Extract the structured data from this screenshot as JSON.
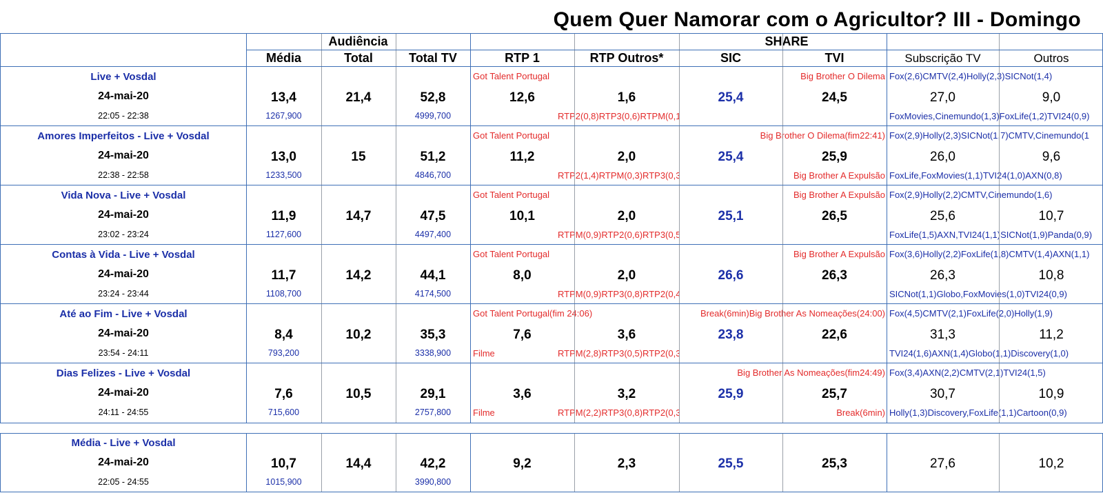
{
  "title": "Quem Quer Namorar com o Agricultor? III - Domingo",
  "headers": {
    "audiencia": "Audiência",
    "share": "SHARE",
    "media": "Média",
    "total": "Total",
    "total_tv": "Total TV",
    "rtp1": "RTP 1",
    "rtp_outros": "RTP Outros*",
    "sic": "SIC",
    "tvi": "TVI",
    "subscricao": "Subscrição TV",
    "outros": "Outros"
  },
  "rows": [
    {
      "name": "Live + Vosdal",
      "date": "24-mai-20",
      "time": "22:05 - 22:38",
      "media": "13,4",
      "total": "21,4",
      "total_tv": "52,8",
      "media_abs": "1267,900",
      "total_tv_abs": "4999,700",
      "rtp1": "12,6",
      "rtp_outros": "1,6",
      "sic": "25,4",
      "tvi": "24,5",
      "subscricao": "27,0",
      "outros": "9,0",
      "rtp1_top": "Got Talent Portugal",
      "rtp1_bottom": "",
      "rtp_outros_top": "",
      "rtp_outros_bottom": "RTP2(0,8)RTP3(0,6)RTPM(0,1)",
      "sic_top": "",
      "tvi_top": "Big Brother O Dilema",
      "tvi_bottom": "",
      "subs_top": "Fox(2,6)CMTV(2,4)Holly(2,3)SICNot(1,4)",
      "subs_bottom": "FoxMovies,Cinemundo(1,3)FoxLife(1,2)TVI24(0,9)"
    },
    {
      "name": "Amores Imperfeitos - Live + Vosdal",
      "date": "24-mai-20",
      "time": "22:38 - 22:58",
      "media": "13,0",
      "total": "15",
      "total_tv": "51,2",
      "media_abs": "1233,500",
      "total_tv_abs": "4846,700",
      "rtp1": "11,2",
      "rtp_outros": "2,0",
      "sic": "25,4",
      "tvi": "25,9",
      "subscricao": "26,0",
      "outros": "9,6",
      "rtp1_top": "Got Talent Portugal",
      "rtp1_bottom": "",
      "rtp_outros_top": "",
      "rtp_outros_bottom": "RTP2(1,4)RTPM(0,3)RTP3(0,3)",
      "sic_top": "Big Brother O Dilema(fim22:41)",
      "tvi_top": "",
      "tvi_bottom": "Big Brother A Expulsão",
      "subs_top": "Fox(2,9)Holly(2,3)SICNot(1,7)CMTV,Cinemundo(1",
      "subs_bottom": "FoxLife,FoxMovies(1,1)TVI24(1,0)AXN(0,8)"
    },
    {
      "name": "Vida Nova - Live + Vosdal",
      "date": "24-mai-20",
      "time": "23:02 - 23:24",
      "media": "11,9",
      "total": "14,7",
      "total_tv": "47,5",
      "media_abs": "1127,600",
      "total_tv_abs": "4497,400",
      "rtp1": "10,1",
      "rtp_outros": "2,0",
      "sic": "25,1",
      "tvi": "26,5",
      "subscricao": "25,6",
      "outros": "10,7",
      "rtp1_top": "Got Talent Portugal",
      "rtp1_bottom": "",
      "rtp_outros_top": "",
      "rtp_outros_bottom": "RTPM(0,9)RTP2(0,6)RTP3(0,5)",
      "sic_top": "",
      "tvi_top": "Big Brother A Expulsão",
      "tvi_bottom": "",
      "subs_top": "Fox(2,9)Holly(2,2)CMTV,Cinemundo(1,6)",
      "subs_bottom": "FoxLife(1,5)AXN,TVI24(1,1)SICNot(1,9)Panda(0,9)"
    },
    {
      "name": "Contas à Vida - Live + Vosdal",
      "date": "24-mai-20",
      "time": "23:24 - 23:44",
      "media": "11,7",
      "total": "14,2",
      "total_tv": "44,1",
      "media_abs": "1108,700",
      "total_tv_abs": "4174,500",
      "rtp1": "8,0",
      "rtp_outros": "2,0",
      "sic": "26,6",
      "tvi": "26,3",
      "subscricao": "26,3",
      "outros": "10,8",
      "rtp1_top": "Got Talent Portugal",
      "rtp1_bottom": "",
      "rtp_outros_top": "",
      "rtp_outros_bottom": "RTPM(0,9)RTP3(0,8)RTP2(0,4)",
      "sic_top": "",
      "tvi_top": "Big Brother A Expulsão",
      "tvi_bottom": "",
      "subs_top": "Fox(3,6)Holly(2,2)FoxLife(1,8)CMTV(1,4)AXN(1,1)",
      "subs_bottom": "SICNot(1,1)Globo,FoxMovies(1,0)TVI24(0,9)"
    },
    {
      "name": "Até ao Fim - Live + Vosdal",
      "date": "24-mai-20",
      "time": "23:54 - 24:11",
      "media": "8,4",
      "total": "10,2",
      "total_tv": "35,3",
      "media_abs": "793,200",
      "total_tv_abs": "3338,900",
      "rtp1": "7,6",
      "rtp_outros": "3,6",
      "sic": "23,8",
      "tvi": "22,6",
      "subscricao": "31,3",
      "outros": "11,2",
      "rtp1_top": "Got Talent Portugal(fim 24:06)",
      "rtp1_bottom": "Filme",
      "rtp_outros_top": "",
      "rtp_outros_bottom": "RTPM(2,8)RTP3(0,5)RTP2(0,3)",
      "sic_top": "Break(6min)Big Brother As Nomeações(24:00)",
      "tvi_top": "",
      "tvi_bottom": "",
      "subs_top": "Fox(4,5)CMTV(2,1)FoxLife(2,0)Holly(1,9)",
      "subs_bottom": "TVI24(1,6)AXN(1,4)Globo(1,1)Discovery(1,0)"
    },
    {
      "name": "Dias Felizes - Live + Vosdal",
      "date": "24-mai-20",
      "time": "24:11 - 24:55",
      "media": "7,6",
      "total": "10,5",
      "total_tv": "29,1",
      "media_abs": "715,600",
      "total_tv_abs": "2757,800",
      "rtp1": "3,6",
      "rtp_outros": "3,2",
      "sic": "25,9",
      "tvi": "25,7",
      "subscricao": "30,7",
      "outros": "10,9",
      "rtp1_top": "",
      "rtp1_bottom": "Filme",
      "rtp_outros_top": "",
      "rtp_outros_bottom": "RTPM(2,2)RTP3(0,8)RTP2(0,3)",
      "sic_top": "Big Brother As Nomeações(fim24:49)",
      "tvi_top": "",
      "tvi_bottom": "Break(6min)",
      "subs_top": "Fox(3,4)AXN(2,2)CMTV(2,1)TVI24(1,5)",
      "subs_bottom": "Holly(1,3)Discovery,FoxLife(1,1)Cartoon(0,9)"
    }
  ],
  "summary": {
    "name": "Média - Live + Vosdal",
    "date": "24-mai-20",
    "time": "22:05 - 24:55",
    "media": "10,7",
    "total": "14,4",
    "total_tv": "42,2",
    "media_abs": "1015,900",
    "total_tv_abs": "3990,800",
    "rtp1": "9,2",
    "rtp_outros": "2,3",
    "sic": "25,5",
    "tvi": "25,3",
    "subscricao": "27,6",
    "outros": "10,2"
  }
}
